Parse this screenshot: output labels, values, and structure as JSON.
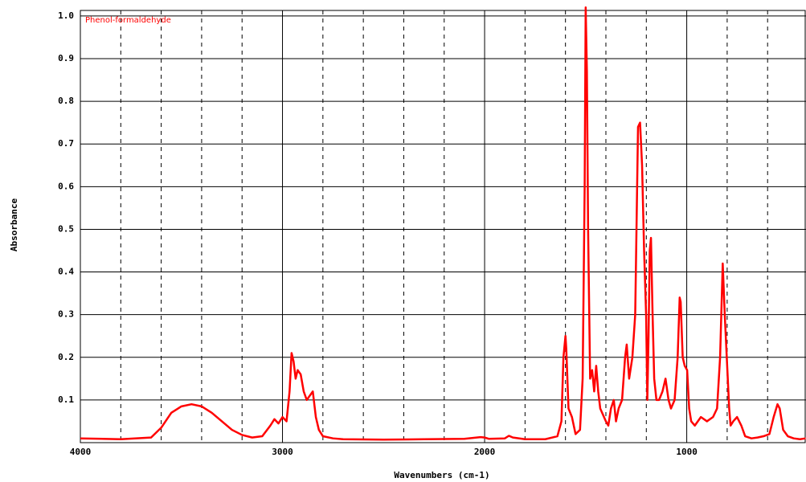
{
  "chart_data": {
    "type": "line",
    "xlabel": "Wavenumbers (cm-1)",
    "ylabel": "Absorbance",
    "xlim": [
      4000,
      410
    ],
    "ylim": [
      0,
      1.013
    ],
    "xticks": [
      4000,
      3000,
      2000,
      1000
    ],
    "xgrid": [
      3800,
      3600,
      3400,
      3200,
      2800,
      2600,
      2400,
      2200,
      1800,
      1600,
      1400,
      1200,
      800,
      600
    ],
    "yticks": [
      0.1,
      0.2,
      0.3,
      0.4,
      0.5,
      0.6,
      0.7,
      0.8,
      0.9,
      {
        "value": 1,
        "label": "1.0"
      }
    ],
    "grid": true,
    "x": [
      4000,
      3800,
      3650,
      3600,
      3550,
      3500,
      3450,
      3400,
      3350,
      3300,
      3250,
      3200,
      3150,
      3100,
      3060,
      3040,
      3020,
      3000,
      2980,
      2965,
      2955,
      2945,
      2935,
      2925,
      2910,
      2895,
      2880,
      2865,
      2850,
      2835,
      2820,
      2800,
      2750,
      2700,
      2500,
      2300,
      2100,
      2020,
      2000,
      1980,
      1900,
      1880,
      1860,
      1800,
      1700,
      1640,
      1620,
      1610,
      1600,
      1596,
      1585,
      1568,
      1550,
      1528,
      1515,
      1505,
      1500,
      1494,
      1488,
      1478,
      1468,
      1458,
      1448,
      1438,
      1428,
      1400,
      1388,
      1375,
      1361,
      1350,
      1337,
      1320,
      1305,
      1297,
      1285,
      1269,
      1255,
      1241,
      1231,
      1221,
      1211,
      1201,
      1195,
      1189,
      1183,
      1177,
      1169,
      1161,
      1150,
      1137,
      1120,
      1105,
      1090,
      1078,
      1060,
      1045,
      1035,
      1030,
      1020,
      1010,
      998,
      988,
      978,
      960,
      930,
      900,
      870,
      850,
      835,
      822,
      812,
      802,
      790,
      783,
      770,
      751,
      730,
      711,
      680,
      650,
      620,
      591,
      570,
      551,
      540,
      523,
      500,
      471,
      440,
      412
    ],
    "series": [
      {
        "name": "Phenol-formaldehyde",
        "color": "#ff0000",
        "values": [
          0.01,
          0.008,
          0.012,
          0.035,
          0.07,
          0.085,
          0.09,
          0.085,
          0.07,
          0.05,
          0.03,
          0.018,
          0.012,
          0.015,
          0.04,
          0.055,
          0.045,
          0.06,
          0.05,
          0.12,
          0.21,
          0.19,
          0.15,
          0.17,
          0.16,
          0.12,
          0.1,
          0.11,
          0.12,
          0.06,
          0.03,
          0.015,
          0.01,
          0.008,
          0.007,
          0.008,
          0.009,
          0.013,
          0.012,
          0.009,
          0.01,
          0.016,
          0.012,
          0.008,
          0.008,
          0.015,
          0.05,
          0.2,
          0.25,
          0.22,
          0.08,
          0.06,
          0.02,
          0.03,
          0.15,
          0.6,
          1.02,
          0.87,
          0.5,
          0.15,
          0.17,
          0.12,
          0.18,
          0.12,
          0.08,
          0.05,
          0.04,
          0.08,
          0.1,
          0.05,
          0.08,
          0.1,
          0.2,
          0.23,
          0.15,
          0.2,
          0.3,
          0.74,
          0.75,
          0.65,
          0.45,
          0.3,
          0.1,
          0.25,
          0.45,
          0.48,
          0.3,
          0.15,
          0.1,
          0.1,
          0.12,
          0.15,
          0.1,
          0.08,
          0.1,
          0.2,
          0.34,
          0.33,
          0.2,
          0.18,
          0.17,
          0.08,
          0.05,
          0.04,
          0.06,
          0.05,
          0.06,
          0.08,
          0.2,
          0.42,
          0.3,
          0.2,
          0.08,
          0.04,
          0.05,
          0.06,
          0.04,
          0.015,
          0.01,
          0.012,
          0.015,
          0.02,
          0.06,
          0.09,
          0.08,
          0.03,
          0.015,
          0.01,
          0.008,
          0.01
        ]
      }
    ]
  }
}
